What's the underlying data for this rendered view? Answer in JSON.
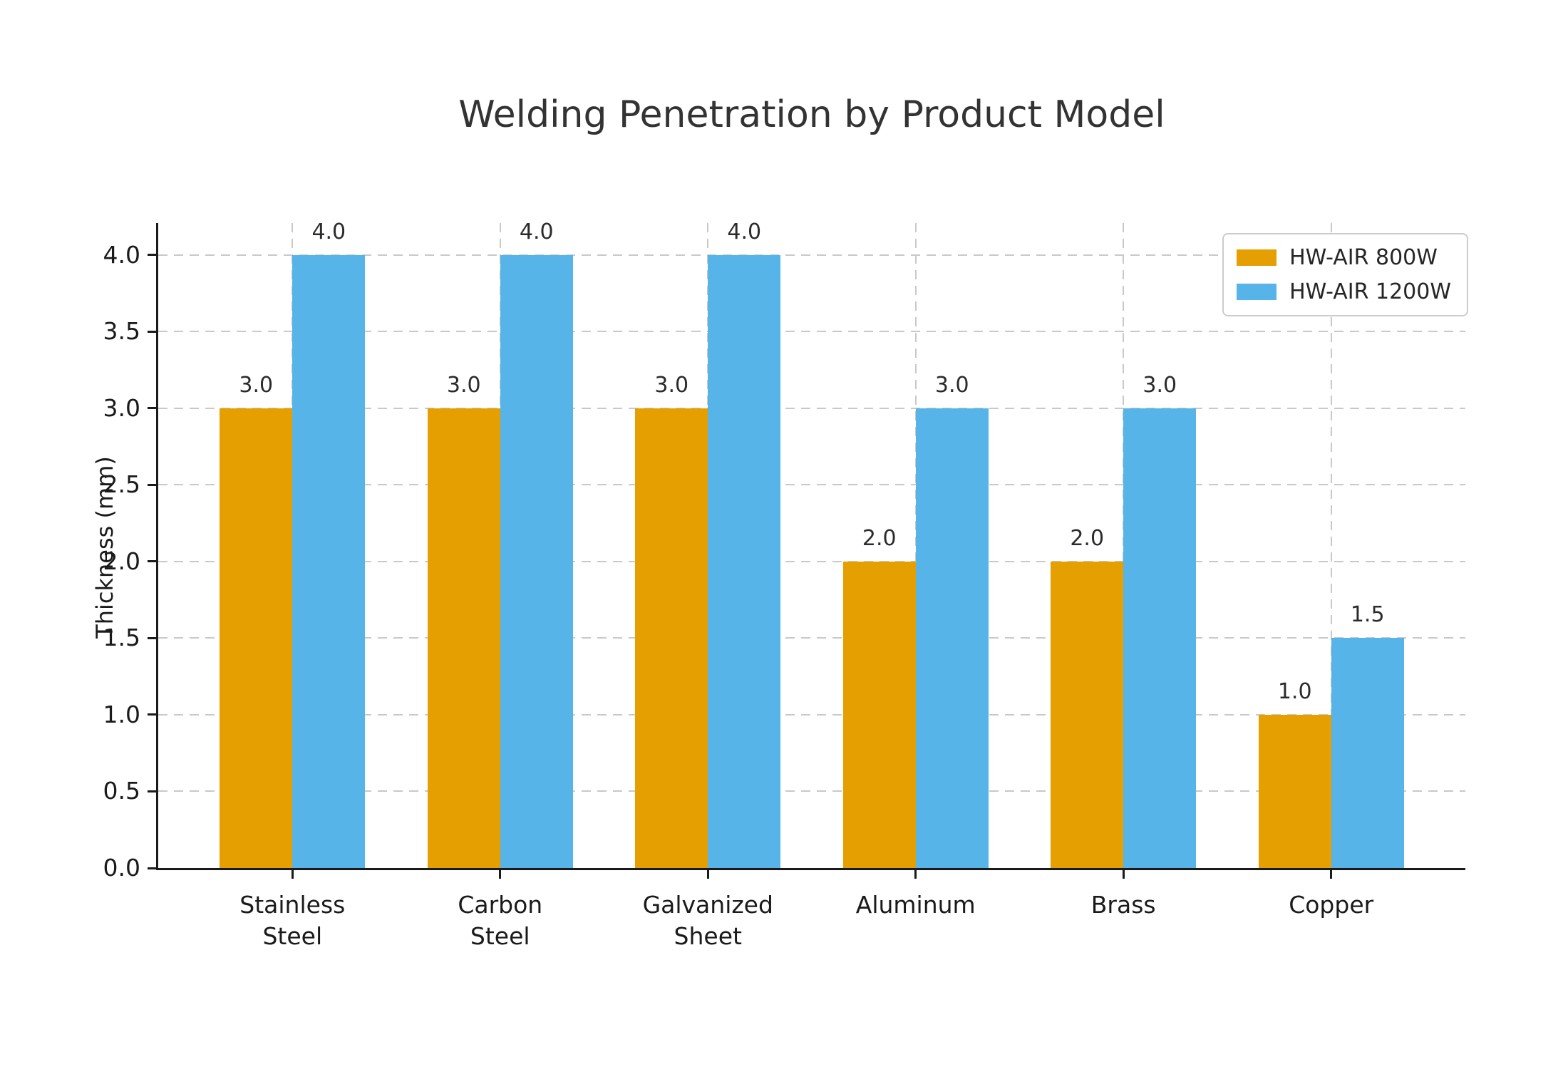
{
  "title": "Welding Penetration by Product Model",
  "chart_data": {
    "type": "bar",
    "title": "Welding Penetration by Product Model",
    "xlabel": "",
    "ylabel": "Thickness (mm)",
    "categories": [
      [
        "Stainless",
        "Steel"
      ],
      [
        "Carbon",
        "Steel"
      ],
      [
        "Galvanized",
        "Sheet"
      ],
      [
        "Aluminum"
      ],
      [
        "Brass"
      ],
      [
        "Copper"
      ]
    ],
    "series": [
      {
        "name": "HW-AIR 800W",
        "color": "#E69F00",
        "values": [
          3.0,
          3.0,
          3.0,
          2.0,
          2.0,
          1.0
        ]
      },
      {
        "name": "HW-AIR 1200W",
        "color": "#56B4E9",
        "values": [
          4.0,
          4.0,
          4.0,
          3.0,
          3.0,
          1.5
        ]
      }
    ],
    "bar_value_labels": [
      [
        "3.0",
        "3.0",
        "3.0",
        "2.0",
        "2.0",
        "1.0"
      ],
      [
        "4.0",
        "4.0",
        "4.0",
        "3.0",
        "3.0",
        "1.5"
      ]
    ],
    "ytick_labels": [
      "0.0",
      "0.5",
      "1.0",
      "1.5",
      "2.0",
      "2.5",
      "3.0",
      "3.5",
      "4.0"
    ],
    "ylim": [
      0.0,
      4.2
    ],
    "grid": "dashed, horizontal and vertical, light gray",
    "legend_position": "upper right",
    "colors": {
      "grid": "#c9c9c9",
      "axis": "#1a1a1a",
      "tick_text": "#1a1a1a",
      "title_text": "#333333",
      "background": "#ffffff"
    }
  }
}
